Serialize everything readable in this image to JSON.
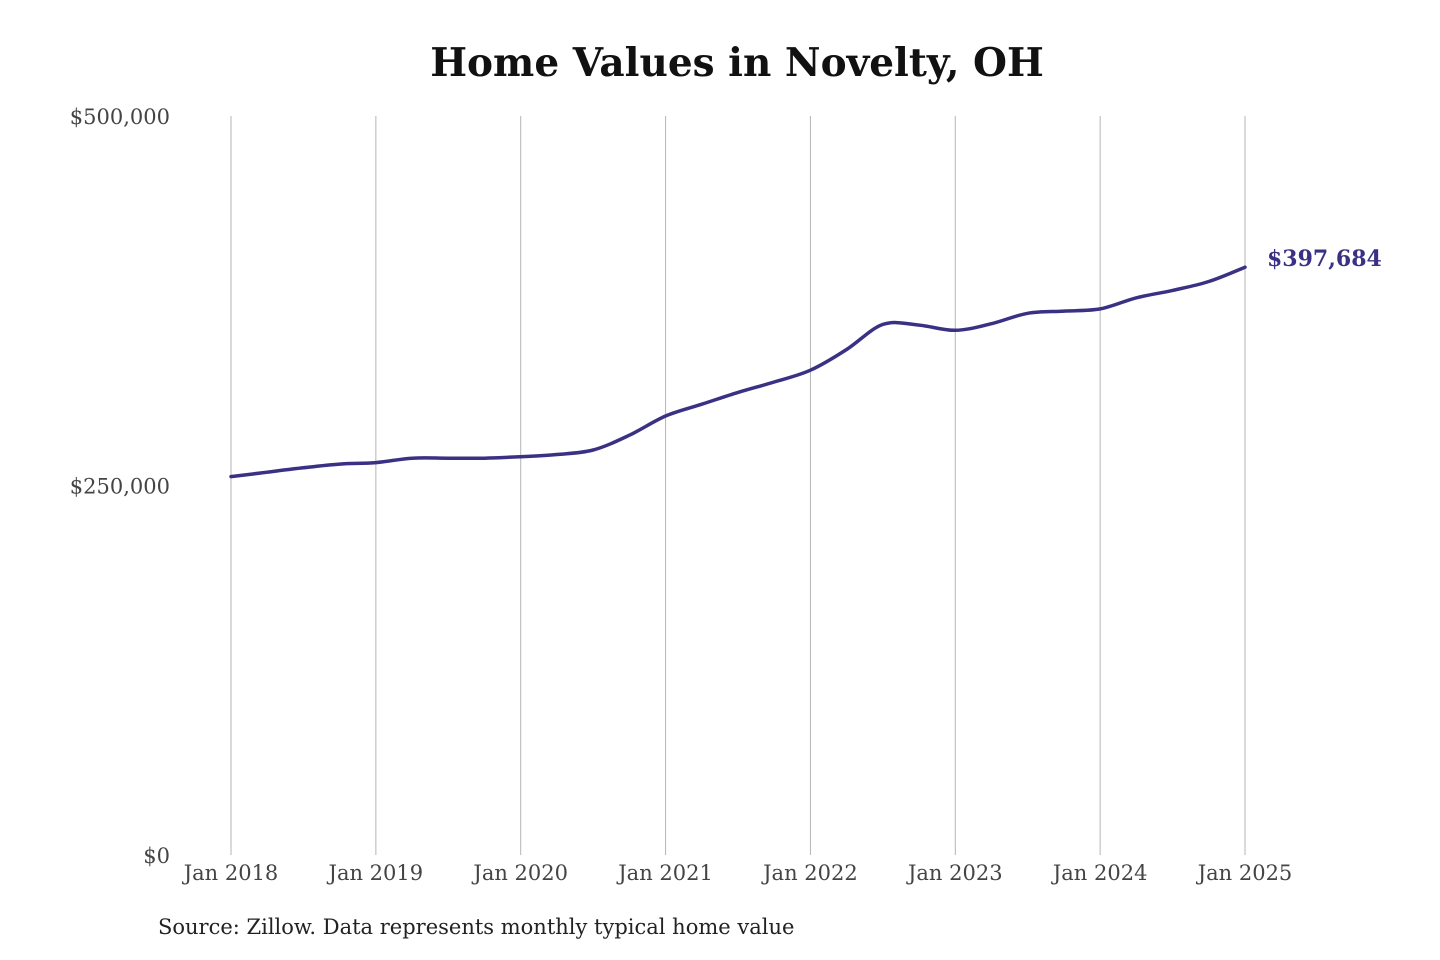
{
  "chart_data": {
    "type": "line",
    "title": "Home Values in Novelty, OH",
    "source": "Source: Zillow. Data represents monthly typical home value",
    "xlabel": "",
    "ylabel": "",
    "ylim": [
      0,
      500000
    ],
    "xlim": [
      "2018-01",
      "2025-01"
    ],
    "grid": "vertical",
    "legend": "none",
    "y_ticks": [
      {
        "value": 0,
        "label": "$0"
      },
      {
        "value": 250000,
        "label": "$250,000"
      },
      {
        "value": 500000,
        "label": "$500,000"
      }
    ],
    "x_ticks": [
      {
        "value": "2018-01",
        "label": "Jan 2018"
      },
      {
        "value": "2019-01",
        "label": "Jan 2019"
      },
      {
        "value": "2020-01",
        "label": "Jan 2020"
      },
      {
        "value": "2021-01",
        "label": "Jan 2021"
      },
      {
        "value": "2022-01",
        "label": "Jan 2022"
      },
      {
        "value": "2023-01",
        "label": "Jan 2023"
      },
      {
        "value": "2024-01",
        "label": "Jan 2024"
      },
      {
        "value": "2025-01",
        "label": "Jan 2025"
      }
    ],
    "series": [
      {
        "color": "#3a3185",
        "end_label": "$397,684",
        "points": [
          {
            "x": "2018-01",
            "y": 256000
          },
          {
            "x": "2018-04",
            "y": 259000
          },
          {
            "x": "2018-07",
            "y": 262000
          },
          {
            "x": "2018-10",
            "y": 264500
          },
          {
            "x": "2019-01",
            "y": 265500
          },
          {
            "x": "2019-04",
            "y": 268500
          },
          {
            "x": "2019-07",
            "y": 268500
          },
          {
            "x": "2019-10",
            "y": 268500
          },
          {
            "x": "2020-01",
            "y": 269500
          },
          {
            "x": "2020-04",
            "y": 271000
          },
          {
            "x": "2020-07",
            "y": 274000
          },
          {
            "x": "2020-10",
            "y": 284000
          },
          {
            "x": "2021-01",
            "y": 297000
          },
          {
            "x": "2021-04",
            "y": 305000
          },
          {
            "x": "2021-07",
            "y": 313000
          },
          {
            "x": "2021-10",
            "y": 320000
          },
          {
            "x": "2022-01",
            "y": 328000
          },
          {
            "x": "2022-04",
            "y": 342000
          },
          {
            "x": "2022-07",
            "y": 359000
          },
          {
            "x": "2022-10",
            "y": 358500
          },
          {
            "x": "2023-01",
            "y": 355000
          },
          {
            "x": "2023-04",
            "y": 359500
          },
          {
            "x": "2023-07",
            "y": 366500
          },
          {
            "x": "2023-10",
            "y": 368000
          },
          {
            "x": "2024-01",
            "y": 369500
          },
          {
            "x": "2024-04",
            "y": 377000
          },
          {
            "x": "2024-07",
            "y": 382000
          },
          {
            "x": "2024-10",
            "y": 388000
          },
          {
            "x": "2025-01",
            "y": 397684
          }
        ]
      }
    ]
  }
}
